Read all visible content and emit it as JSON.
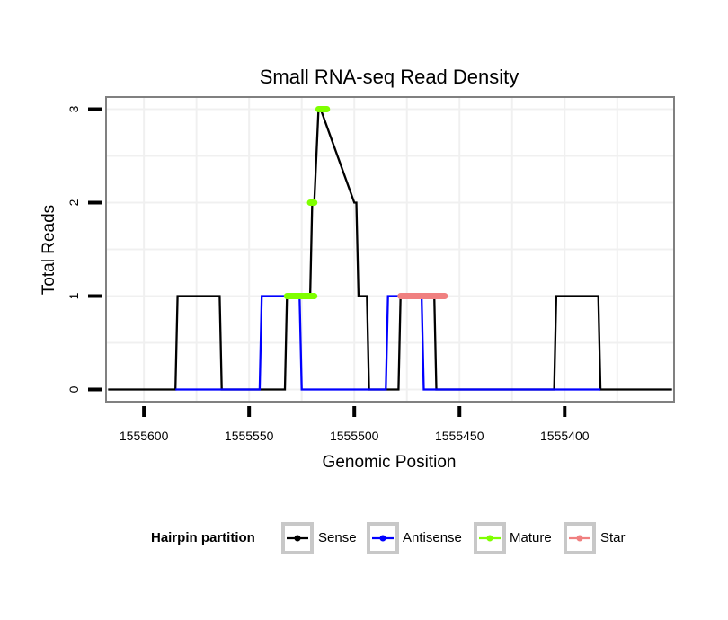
{
  "chart_data": {
    "type": "line",
    "title": "Small RNA-seq Read Density",
    "xlabel": "Genomic Position",
    "ylabel": "Total Reads",
    "xlim": [
      1555618,
      1555348
    ],
    "ylim": [
      -0.13,
      3.13
    ],
    "x_reversed": true,
    "x_ticks": [
      1555400,
      1555450,
      1555500,
      1555550,
      1555600
    ],
    "x_tick_labels": [
      "1555400",
      "1555450",
      "1555500",
      "1555550",
      "1555600"
    ],
    "y_ticks": [
      0,
      1,
      2,
      3
    ],
    "y_tick_labels": [
      "0",
      "1",
      "2",
      "3"
    ],
    "grid": true,
    "legend": {
      "title": "Hairpin partition",
      "position": "bottom",
      "entries": [
        {
          "name": "Sense",
          "color": "#000000"
        },
        {
          "name": "Antisense",
          "color": "#0000ff"
        },
        {
          "name": "Mature",
          "color": "#7fff00"
        },
        {
          "name": "Star",
          "color": "#f08080"
        }
      ]
    },
    "series": [
      {
        "name": "Sense",
        "color": "#000000",
        "x": [
          1555617,
          1555585,
          1555584,
          1555564,
          1555563,
          1555533,
          1555532,
          1555521,
          1555520,
          1555519,
          1555517,
          1555516,
          1555500,
          1555499,
          1555498,
          1555494,
          1555493,
          1555479,
          1555478,
          1555462,
          1555461,
          1555405,
          1555404,
          1555384,
          1555383,
          1555349
        ],
        "y": [
          0,
          0,
          1,
          1,
          0,
          0,
          1,
          1,
          2,
          2,
          3,
          3,
          2,
          2,
          1,
          1,
          0,
          0,
          1,
          1,
          0,
          0,
          1,
          1,
          0,
          0
        ]
      },
      {
        "name": "Antisense",
        "color": "#0000ff",
        "x": [
          1555585,
          1555545,
          1555544,
          1555526,
          1555525,
          1555485,
          1555484,
          1555468,
          1555467,
          1555383
        ],
        "y": [
          0,
          0,
          1,
          1,
          0,
          0,
          1,
          1,
          0,
          0
        ]
      },
      {
        "name": "Mature",
        "color": "#7fff00",
        "segments": [
          {
            "x": [
              1555532,
              1555519
            ],
            "y": [
              1,
              1
            ]
          },
          {
            "x": [
              1555521,
              1555519
            ],
            "y": [
              2,
              2
            ]
          },
          {
            "x": [
              1555517,
              1555513
            ],
            "y": [
              3,
              3
            ]
          }
        ]
      },
      {
        "name": "Star",
        "color": "#f08080",
        "segments": [
          {
            "x": [
              1555478,
              1555457
            ],
            "y": [
              1,
              1
            ]
          }
        ]
      }
    ]
  }
}
